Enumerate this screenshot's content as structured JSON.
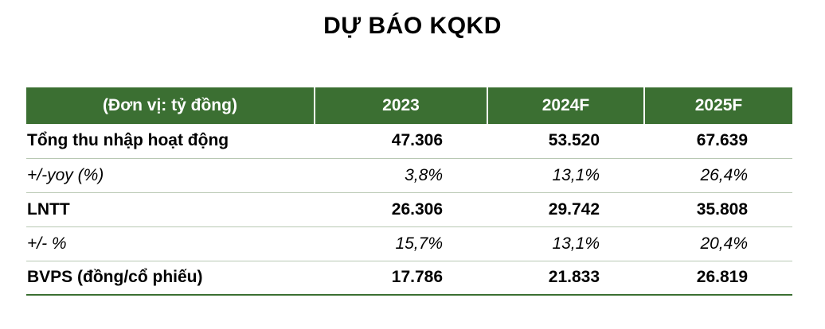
{
  "title": "DỰ BÁO KQKD",
  "table": {
    "headers": [
      "(Đơn vị: tỷ đồng)",
      "2023",
      "2024F",
      "2025F"
    ],
    "rows": [
      {
        "label": "Tổng thu nhập hoạt động",
        "values": [
          "47.306",
          "53.520",
          "67.639"
        ]
      },
      {
        "label": "+/-yoy (%)",
        "values": [
          "3,8%",
          "13,1%",
          "26,4%"
        ]
      },
      {
        "label": "LNTT",
        "values": [
          "26.306",
          "29.742",
          "35.808"
        ]
      },
      {
        "label": "+/- %",
        "values": [
          "15,7%",
          "13,1%",
          "20,4%"
        ]
      },
      {
        "label": "BVPS (đồng/cổ phiếu)",
        "values": [
          "17.786",
          "21.833",
          "26.819"
        ]
      }
    ]
  },
  "colors": {
    "header_background": "#3b6f32",
    "header_text": "#ffffff"
  }
}
